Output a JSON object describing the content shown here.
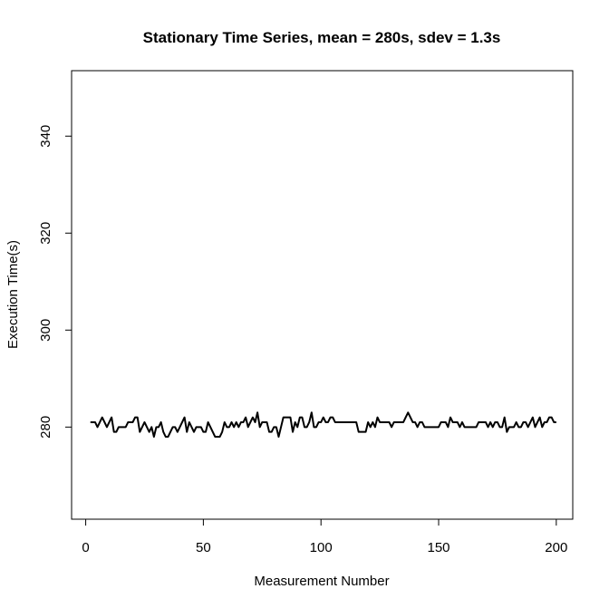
{
  "chart_data": {
    "type": "line",
    "title": "Stationary Time Series, mean = 280s, sdev = 1.3s",
    "xlabel": "Measurement Number",
    "ylabel": "Execution Time(s)",
    "xlim": [
      -6,
      207
    ],
    "ylim": [
      261,
      353.5
    ],
    "x_ticks": [
      0,
      50,
      100,
      150,
      200
    ],
    "y_ticks": [
      280,
      300,
      320,
      340
    ],
    "grid": false,
    "legend": "none",
    "line_color": "#000000",
    "x_start": 2,
    "series": [
      {
        "values": [
          281,
          281,
          281,
          280,
          281,
          282,
          281,
          280,
          281,
          282,
          279,
          279,
          280,
          280,
          280,
          280,
          281,
          281,
          281,
          282,
          282,
          279,
          280,
          281,
          280,
          279,
          280,
          278,
          280,
          280,
          281,
          279,
          278,
          278,
          279,
          280,
          280,
          279,
          280,
          281,
          282,
          279,
          281,
          280,
          279,
          280,
          280,
          280,
          279,
          279,
          281,
          280,
          279,
          278,
          278,
          278,
          279,
          281,
          280,
          280,
          281,
          280,
          281,
          280,
          281,
          281,
          282,
          280,
          281,
          282,
          281,
          283,
          280,
          281,
          281,
          281,
          279,
          279,
          280,
          280,
          278,
          280,
          282,
          282,
          282,
          282,
          279,
          281,
          280,
          282,
          282,
          280,
          280,
          281,
          283,
          280,
          280,
          281,
          281,
          282,
          281,
          281,
          282,
          282,
          281,
          281,
          281,
          281,
          281,
          281,
          281,
          281,
          281,
          281,
          279,
          279,
          279,
          279,
          281,
          280,
          281,
          280,
          282,
          281,
          281,
          281,
          281,
          281,
          280,
          281,
          281,
          281,
          281,
          281,
          282,
          283,
          282,
          281,
          281,
          280,
          281,
          281,
          280,
          280,
          280,
          280,
          280,
          280,
          280,
          281,
          281,
          281,
          280,
          282,
          281,
          281,
          281,
          280,
          281,
          280,
          280,
          280,
          280,
          280,
          280,
          281,
          281,
          281,
          281,
          280,
          281,
          280,
          281,
          281,
          280,
          280,
          282,
          279,
          280,
          280,
          280,
          281,
          280,
          280,
          281,
          281,
          280,
          281,
          282,
          280,
          281,
          282,
          280,
          281,
          281,
          282,
          282,
          281,
          281
        ]
      }
    ]
  }
}
